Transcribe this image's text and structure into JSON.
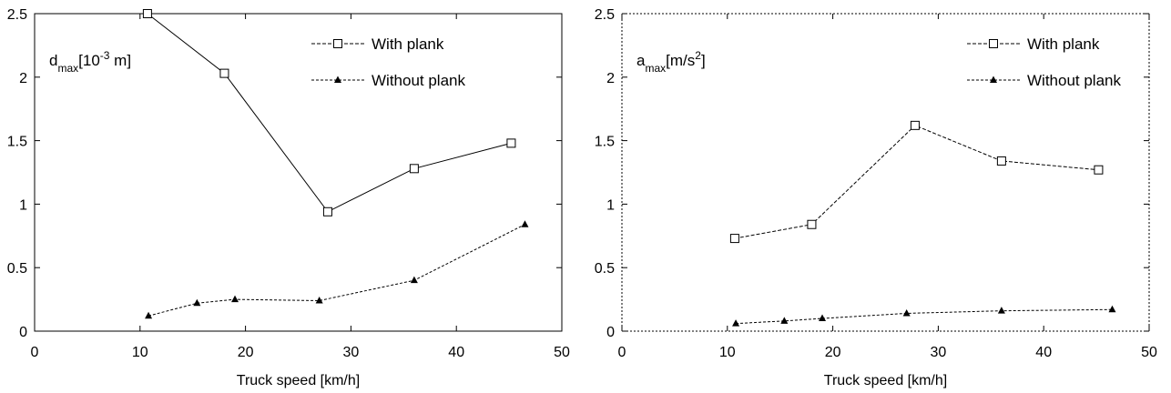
{
  "chart_data": [
    {
      "type": "line",
      "xlabel": "Truck speed [km/h]",
      "ylabel": {
        "base": "d",
        "sub": "max",
        "pre": "[10",
        "sup": "-3",
        "post": " m]"
      },
      "xlim": [
        0,
        50
      ],
      "ylim": [
        0,
        2.5
      ],
      "xticks": [
        "0",
        "10",
        "20",
        "30",
        "40",
        "50"
      ],
      "yticks": [
        "0",
        "0.5",
        "1",
        "1.5",
        "2",
        "2.5"
      ],
      "frame": "solid",
      "grid": false,
      "legend_position": "top-right",
      "series": [
        {
          "name": "With plank",
          "marker": "square",
          "dash": "long-dash",
          "x": [
            10.7,
            18.0,
            27.8,
            36.0,
            45.2
          ],
          "y": [
            2.5,
            2.03,
            0.94,
            1.28,
            1.48
          ]
        },
        {
          "name": "Without plank",
          "marker": "triangle",
          "dash": "short-dash",
          "x": [
            10.8,
            15.4,
            19.0,
            27.0,
            36.0,
            46.5
          ],
          "y": [
            0.12,
            0.22,
            0.25,
            0.24,
            0.4,
            0.84
          ]
        }
      ]
    },
    {
      "type": "line",
      "xlabel": "Truck speed [km/h]",
      "ylabel": {
        "base": "a",
        "sub": "max",
        "pre": "[m/s",
        "sup": "2",
        "post": "]"
      },
      "xlim": [
        0,
        50
      ],
      "ylim": [
        0,
        2.5
      ],
      "xticks": [
        "0",
        "10",
        "20",
        "30",
        "40",
        "50"
      ],
      "yticks": [
        "0",
        "0.5",
        "1",
        "1.5",
        "2",
        "2.5"
      ],
      "frame": "dashed",
      "grid": false,
      "legend_position": "top-right",
      "series": [
        {
          "name": "With plank",
          "marker": "square",
          "dash": "long-dash",
          "x": [
            10.7,
            18.0,
            27.8,
            36.0,
            45.2
          ],
          "y": [
            0.73,
            0.84,
            1.62,
            1.34,
            1.27
          ]
        },
        {
          "name": "Without plank",
          "marker": "triangle",
          "dash": "short-dash",
          "x": [
            10.8,
            15.4,
            19.0,
            27.0,
            36.0,
            46.5
          ],
          "y": [
            0.06,
            0.08,
            0.1,
            0.14,
            0.16,
            0.17
          ]
        }
      ]
    }
  ]
}
